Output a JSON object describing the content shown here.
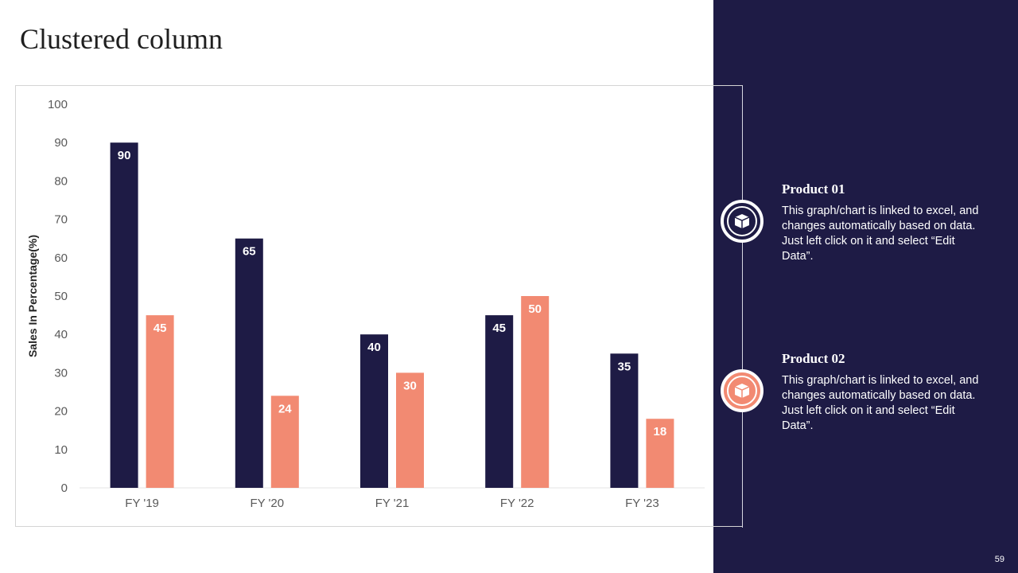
{
  "slide": {
    "title": "Clustered column",
    "page_number": "59"
  },
  "colors": {
    "navy": "#1e1b45",
    "salmon": "#f28a72",
    "axis_text": "#595959"
  },
  "legend": [
    {
      "title": "Product 01",
      "description": "This graph/chart is linked to excel, and changes automatically based on data. Just left click on it and select “Edit Data”.",
      "icon": "box-icon",
      "color": "#1e1b45"
    },
    {
      "title": "Product 02",
      "description": "This graph/chart is linked to excel, and changes automatically based on data. Just left click on it and select “Edit Data”.",
      "icon": "box-icon",
      "color": "#f28a72"
    }
  ],
  "chart_data": {
    "type": "bar",
    "title": "",
    "xlabel": "",
    "ylabel": "Sales In Percentage(%)",
    "ylim": [
      0,
      100
    ],
    "yticks": [
      0,
      10,
      20,
      30,
      40,
      50,
      60,
      70,
      80,
      90,
      100
    ],
    "categories": [
      "FY '19",
      "FY '20",
      "FY '21",
      "FY '22",
      "FY '23"
    ],
    "series": [
      {
        "name": "Product 01",
        "color": "#1e1b45",
        "values": [
          90,
          65,
          40,
          45,
          35
        ]
      },
      {
        "name": "Product 02",
        "color": "#f28a72",
        "values": [
          45,
          24,
          30,
          50,
          18
        ]
      }
    ],
    "data_labels": true,
    "grid": false,
    "legend_position": "right"
  }
}
